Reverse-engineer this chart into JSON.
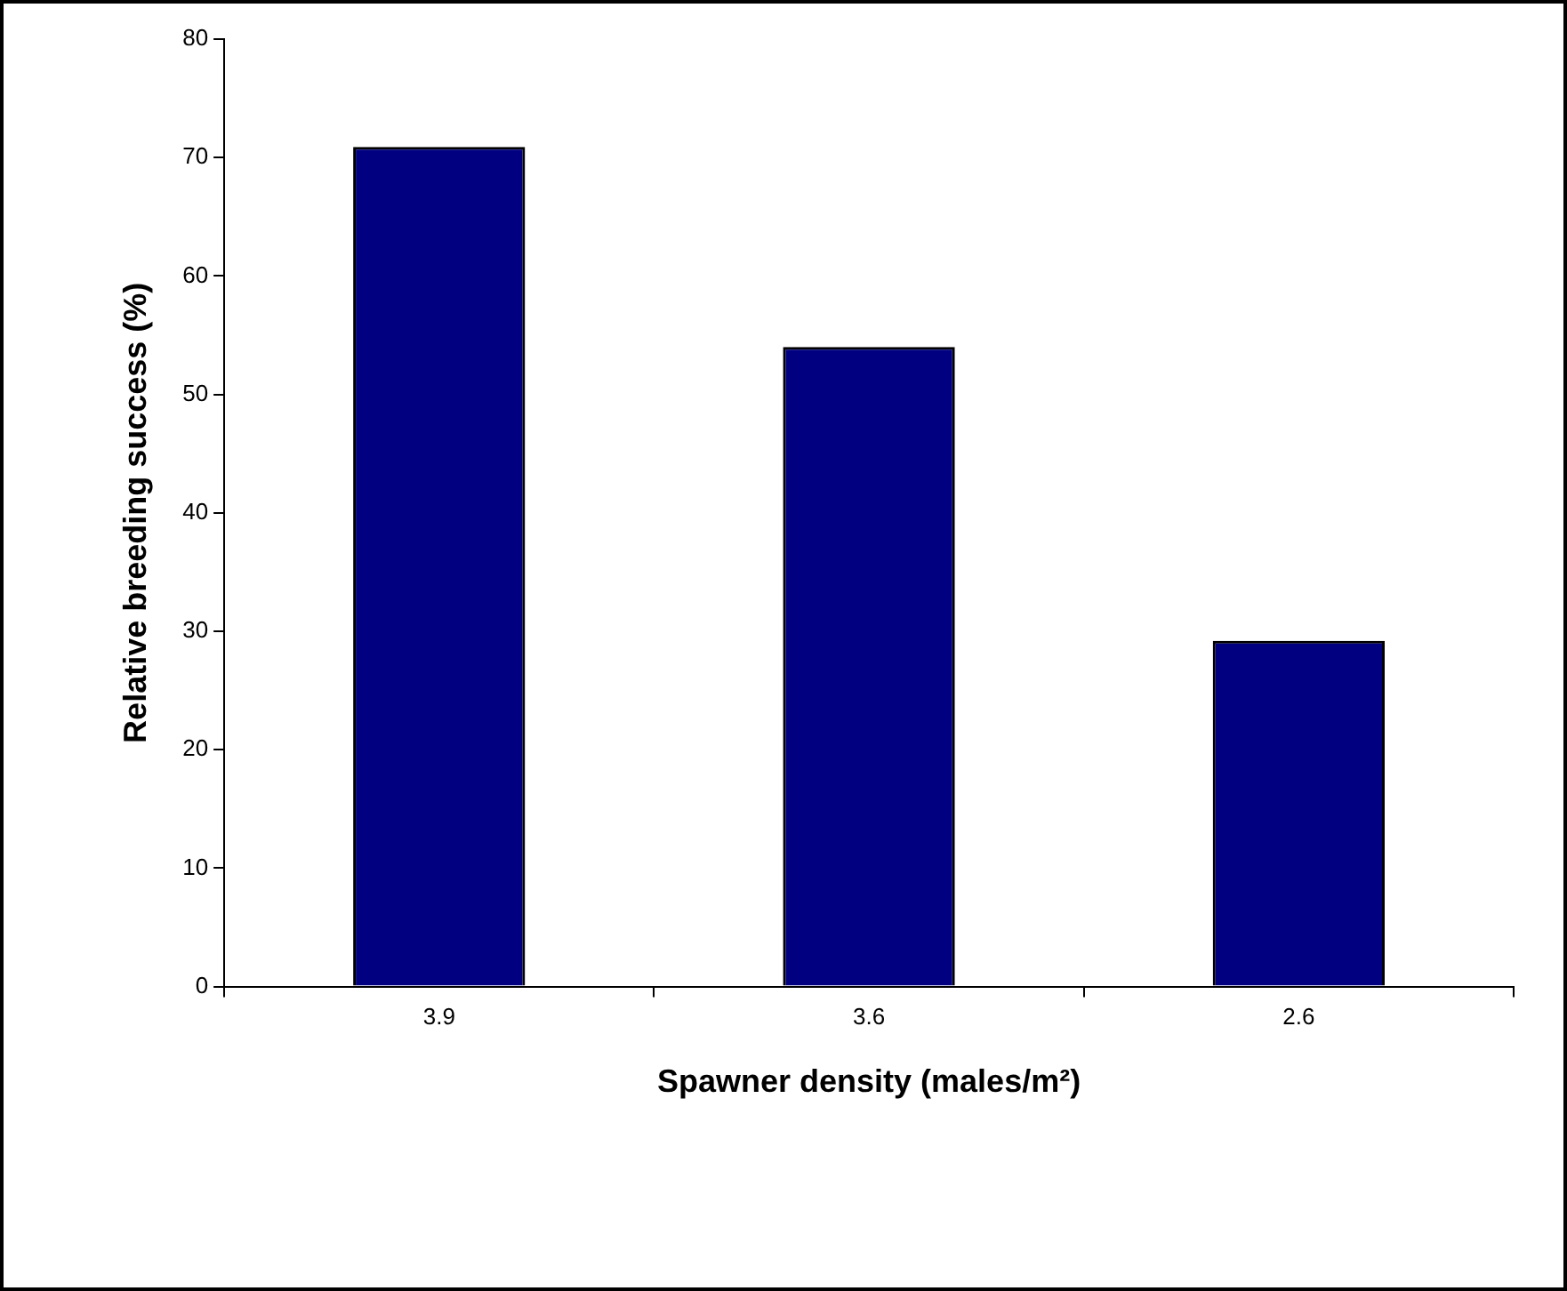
{
  "chart_data": {
    "type": "bar",
    "xlabel": "Spawner density (males/m²)",
    "ylabel": "Relative breeding success (%)",
    "categories": [
      "3.9",
      "3.6",
      "2.6"
    ],
    "values": [
      70.9,
      54.0,
      29.2
    ],
    "color": "#000080",
    "ylim": [
      0,
      80
    ],
    "yticks": [
      0,
      10,
      20,
      30,
      40,
      50,
      60,
      70,
      80
    ],
    "grid": false,
    "legend": false
  }
}
